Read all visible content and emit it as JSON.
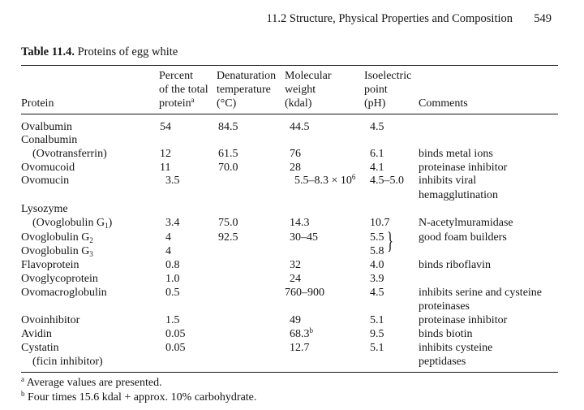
{
  "running_head": {
    "title": "11.2 Structure, Physical Properties and Composition",
    "page_number": "549"
  },
  "caption": {
    "label": "Table 11.4.",
    "title": "Proteins of egg white"
  },
  "headers": {
    "protein": "Protein",
    "percent": [
      "Percent",
      "of the total",
      "protein"
    ],
    "percent_note": "a",
    "denaturation": [
      "Denaturation",
      "temperature",
      "(°C)"
    ],
    "molecular_weight": [
      "Molecular",
      "weight",
      "(kdal)"
    ],
    "isoelectric": [
      "Isoelectric",
      "point",
      "(pH)"
    ],
    "comments": "Comments"
  },
  "rows": {
    "ovalbumin": {
      "name": "Ovalbumin",
      "percent": "54",
      "denat": "84.5",
      "mw": "44.5",
      "pi": "4.5"
    },
    "conalbumin": {
      "name": "Conalbumin"
    },
    "ovotransferrin": {
      "name": "(Ovotransferrin)",
      "percent": "12",
      "denat": "61.5",
      "mw": "76",
      "pi": "6.1",
      "comment": "binds metal ions"
    },
    "ovomucoid": {
      "name": "Ovomucoid",
      "percent": "11",
      "denat": "70.0",
      "mw": "28",
      "pi": "4.1",
      "comment": "proteinase inhibitor"
    },
    "ovomucin": {
      "name": "Ovomucin",
      "percent": "3.5",
      "mw_base": "5.5–8.3 × 10",
      "mw_exp": "6",
      "pi": "4.5–5.0",
      "comment": [
        "inhibits viral",
        "hemagglutination"
      ]
    },
    "lysozyme": {
      "name": "Lysozyme"
    },
    "ovoglobulin_g1": {
      "name_base": "(Ovoglobulin G",
      "name_sub": "1",
      "name_close": ")",
      "percent": "3.4",
      "denat": "75.0",
      "mw": "14.3",
      "pi": "10.7",
      "comment": "N-acetylmuramidase"
    },
    "ovoglobulin_g2": {
      "name_base": "Ovoglobulin G",
      "name_sub": "2",
      "percent": "4",
      "denat": "92.5",
      "mw": "30–45",
      "pi": "5.5",
      "comment": "good foam builders"
    },
    "ovoglobulin_g3": {
      "name_base": "Ovoglobulin G",
      "name_sub": "3",
      "percent": "4",
      "pi": "5.8"
    },
    "flavoprotein": {
      "name": "Flavoprotein",
      "percent": "0.8",
      "mw": "32",
      "pi": "4.0",
      "comment": "binds riboflavin"
    },
    "ovoglycoprotein": {
      "name": "Ovoglycoprotein",
      "percent": "1.0",
      "mw": "24",
      "pi": "3.9"
    },
    "ovomacroglobulin": {
      "name": "Ovomacroglobulin",
      "percent": "0.5",
      "mw": "760–900",
      "pi": "4.5",
      "comment": [
        "inhibits serine and cysteine",
        "proteinases"
      ]
    },
    "ovoinhibitor": {
      "name": "Ovoinhibitor",
      "percent": "1.5",
      "mw": "49",
      "pi": "5.1",
      "comment": "proteinase inhibitor"
    },
    "avidin": {
      "name": "Avidin",
      "percent": "0.05",
      "mw": "68.3",
      "mw_note": "b",
      "pi": "9.5",
      "comment": "binds biotin"
    },
    "cystatin": {
      "name": [
        "Cystatin",
        "(ficin inhibitor)"
      ],
      "percent": "0.05",
      "mw": "12.7",
      "pi": "5.1",
      "comment": [
        "inhibits cysteine",
        "peptidases"
      ]
    }
  },
  "footnotes": {
    "a_mark": "a",
    "a_text": "Average values are presented.",
    "b_mark": "b",
    "b_text": "Four times 15.6 kdal + approx. 10% carbohydrate."
  }
}
